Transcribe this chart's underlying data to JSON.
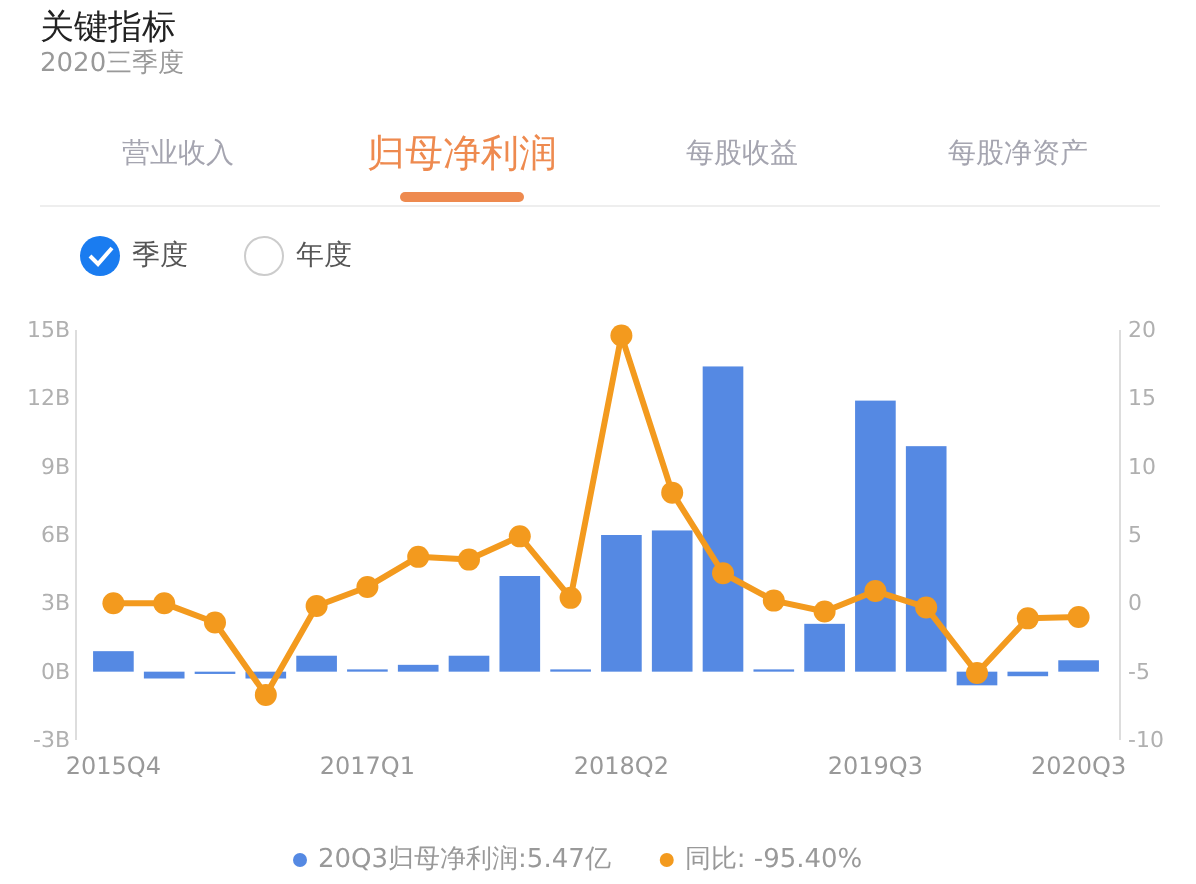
{
  "chart_data": {
    "type": "bar",
    "title": "关键指标",
    "subtitle": "2020三季度",
    "annotations": [
      "营业收入",
      "归母净利润",
      "每股收益",
      "每股净资产",
      "季度",
      "年度"
    ],
    "categories": [
      "2015Q4",
      null,
      null,
      null,
      null,
      "2017Q1",
      null,
      null,
      null,
      null,
      "2018Q2",
      null,
      null,
      null,
      null,
      "2019Q3",
      null,
      null,
      null,
      "2020Q3"
    ],
    "series": [
      {
        "name": "20Q3归母净利润:5.47亿",
        "color": "#5589e3",
        "values": [
          0.9,
          -0.3,
          -0.1,
          -0.3,
          0.7,
          0.1,
          0.3,
          0.7,
          4.2,
          0.1,
          6.0,
          6.2,
          13.4,
          0.1,
          2.1,
          11.9,
          9.9,
          -0.6,
          -0.2,
          0.5
        ]
      },
      {
        "name": "同比: -95.40%",
        "type": "line",
        "axis": "y2",
        "color": "#f39a1e",
        "values": [
          0,
          0,
          -1.4,
          -6.7,
          -0.2,
          1.2,
          3.4,
          3.2,
          4.9,
          0.4,
          19.6,
          8.1,
          2.2,
          0.2,
          -0.6,
          0.9,
          -0.3,
          -5.1,
          -1.1,
          -1
        ]
      }
    ],
    "ylim": [
      -3,
      15
    ],
    "yticks": [
      {
        "value": -3,
        "label": "-3B"
      },
      {
        "value": 0,
        "label": "0B"
      },
      {
        "value": 3,
        "label": "3B"
      },
      {
        "value": 6,
        "label": "6B"
      },
      {
        "value": 9,
        "label": "9B"
      },
      {
        "value": 12,
        "label": "12B"
      },
      {
        "value": 15,
        "label": "15B"
      }
    ],
    "y2lim": [
      -10,
      20
    ],
    "y2ticks": [
      -10,
      -5,
      0,
      5,
      10,
      15,
      20
    ],
    "grid": false,
    "legend": "bottom",
    "marker": "circle",
    "line_style": "solid"
  }
}
